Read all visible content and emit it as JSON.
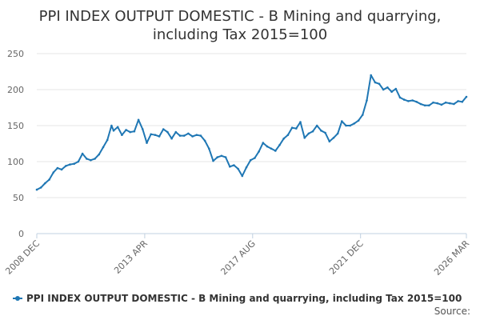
{
  "chart_data": {
    "type": "line",
    "title_lines": [
      "PPI INDEX OUTPUT DOMESTIC - B Mining and quarrying,",
      "including Tax 2015=100"
    ],
    "x_start": "2008-12",
    "x_end": "2026-03",
    "x_tick_labels": [
      {
        "label": "2008 DEC",
        "date": "2008-12"
      },
      {
        "label": "2013 APR",
        "date": "2013-04"
      },
      {
        "label": "2017 AUG",
        "date": "2017-08"
      },
      {
        "label": "2021 DEC",
        "date": "2021-12"
      },
      {
        "label": "2026 MAR",
        "date": "2026-03"
      }
    ],
    "ylim": [
      0,
      250
    ],
    "y_ticks": [
      0,
      50,
      100,
      150,
      200,
      250
    ],
    "grid": true,
    "legend_position": "bottom",
    "source": "Source:",
    "colors": {
      "series": "#1f77b4"
    },
    "series": [
      {
        "name": "PPI INDEX OUTPUT DOMESTIC - B Mining and quarrying, including Tax 2015=100",
        "points": [
          [
            "2008-12",
            61
          ],
          [
            "2009-02",
            64
          ],
          [
            "2009-04",
            70
          ],
          [
            "2009-06",
            75
          ],
          [
            "2009-08",
            85
          ],
          [
            "2009-10",
            91
          ],
          [
            "2009-12",
            89
          ],
          [
            "2010-02",
            94
          ],
          [
            "2010-04",
            96
          ],
          [
            "2010-06",
            97
          ],
          [
            "2010-08",
            100
          ],
          [
            "2010-10",
            111
          ],
          [
            "2010-12",
            104
          ],
          [
            "2011-02",
            102
          ],
          [
            "2011-04",
            104
          ],
          [
            "2011-06",
            110
          ],
          [
            "2011-08",
            120
          ],
          [
            "2011-10",
            130
          ],
          [
            "2011-12",
            150
          ],
          [
            "2012-01",
            143
          ],
          [
            "2012-03",
            148
          ],
          [
            "2012-05",
            137
          ],
          [
            "2012-07",
            144
          ],
          [
            "2012-09",
            141
          ],
          [
            "2012-11",
            142
          ],
          [
            "2013-01",
            158
          ],
          [
            "2013-03",
            145
          ],
          [
            "2013-05",
            126
          ],
          [
            "2013-07",
            138
          ],
          [
            "2013-09",
            137
          ],
          [
            "2013-11",
            135
          ],
          [
            "2014-01",
            145
          ],
          [
            "2014-03",
            141
          ],
          [
            "2014-05",
            132
          ],
          [
            "2014-07",
            141
          ],
          [
            "2014-09",
            136
          ],
          [
            "2014-11",
            136
          ],
          [
            "2015-01",
            139
          ],
          [
            "2015-03",
            135
          ],
          [
            "2015-05",
            137
          ],
          [
            "2015-07",
            136
          ],
          [
            "2015-09",
            129
          ],
          [
            "2015-11",
            118
          ],
          [
            "2016-01",
            101
          ],
          [
            "2016-03",
            106
          ],
          [
            "2016-05",
            108
          ],
          [
            "2016-07",
            106
          ],
          [
            "2016-09",
            93
          ],
          [
            "2016-11",
            95
          ],
          [
            "2017-01",
            90
          ],
          [
            "2017-03",
            80
          ],
          [
            "2017-05",
            92
          ],
          [
            "2017-07",
            102
          ],
          [
            "2017-09",
            105
          ],
          [
            "2017-11",
            114
          ],
          [
            "2018-01",
            126
          ],
          [
            "2018-03",
            121
          ],
          [
            "2018-05",
            118
          ],
          [
            "2018-07",
            115
          ],
          [
            "2018-09",
            123
          ],
          [
            "2018-11",
            132
          ],
          [
            "2019-01",
            137
          ],
          [
            "2019-03",
            147
          ],
          [
            "2019-05",
            146
          ],
          [
            "2019-07",
            155
          ],
          [
            "2019-09",
            133
          ],
          [
            "2019-11",
            139
          ],
          [
            "2020-01",
            142
          ],
          [
            "2020-03",
            150
          ],
          [
            "2020-05",
            143
          ],
          [
            "2020-07",
            140
          ],
          [
            "2020-09",
            128
          ],
          [
            "2020-11",
            133
          ],
          [
            "2021-01",
            139
          ],
          [
            "2021-03",
            156
          ],
          [
            "2021-05",
            150
          ],
          [
            "2021-07",
            150
          ],
          [
            "2021-09",
            153
          ],
          [
            "2021-11",
            157
          ],
          [
            "2022-01",
            165
          ],
          [
            "2022-03",
            185
          ],
          [
            "2022-05",
            220
          ],
          [
            "2022-07",
            210
          ],
          [
            "2022-09",
            208
          ],
          [
            "2022-11",
            200
          ],
          [
            "2023-01",
            203
          ],
          [
            "2023-03",
            197
          ],
          [
            "2023-05",
            201
          ],
          [
            "2023-07",
            189
          ],
          [
            "2023-09",
            186
          ],
          [
            "2023-11",
            184
          ],
          [
            "2024-01",
            185
          ],
          [
            "2024-03",
            183
          ],
          [
            "2024-05",
            180
          ],
          [
            "2024-07",
            178
          ],
          [
            "2024-09",
            178
          ],
          [
            "2024-11",
            182
          ],
          [
            "2025-01",
            181
          ],
          [
            "2025-03",
            179
          ],
          [
            "2025-05",
            182
          ],
          [
            "2025-07",
            181
          ],
          [
            "2025-09",
            180
          ],
          [
            "2025-11",
            184
          ],
          [
            "2026-01",
            183
          ],
          [
            "2026-03",
            190
          ]
        ]
      }
    ]
  }
}
